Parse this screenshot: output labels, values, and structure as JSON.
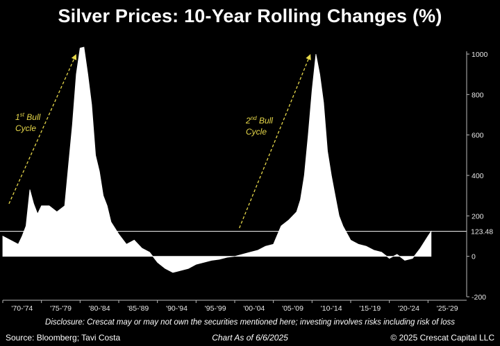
{
  "chart_data": {
    "type": "area",
    "title": "Silver Prices: 10-Year Rolling Changes (%)",
    "ylim": [
      -200,
      1000
    ],
    "yticks": [
      1000,
      800,
      600,
      400,
      200,
      0,
      -200
    ],
    "ytick_labels": [
      "1000",
      "800",
      "600",
      "400",
      "200",
      "0",
      "-200"
    ],
    "x_range": [
      1970,
      2030
    ],
    "xticks": [
      "'70-'74",
      "'75-'79",
      "'80-'84",
      "'85-'89",
      "'90-'94",
      "'95-'99",
      "'00-'04",
      "'05-'09",
      "'10-'14",
      "'15-'19",
      "'20-'24",
      "'25-'29"
    ],
    "reference_line": {
      "value": 123.48,
      "label": "123.48"
    },
    "x": [
      1970,
      1971,
      1972,
      1972.5,
      1973,
      1973.5,
      1974,
      1974.5,
      1975,
      1976,
      1977,
      1978,
      1978.5,
      1979,
      1979.5,
      1980,
      1980.5,
      1981,
      1981.5,
      1982,
      1982.5,
      1983,
      1983.5,
      1984,
      1985,
      1986,
      1987,
      1988,
      1989,
      1990,
      1991,
      1992,
      1993,
      1994,
      1995,
      1996,
      1997,
      1998,
      1999,
      2000,
      2001,
      2002,
      2003,
      2004,
      2005,
      2006,
      2007,
      2008,
      2008.5,
      2009,
      2009.5,
      2010,
      2010.5,
      2011,
      2011.5,
      2012,
      2012.5,
      2013,
      2013.5,
      2014,
      2015,
      2016,
      2017,
      2018,
      2019,
      2020,
      2021,
      2022,
      2023,
      2024,
      2025,
      2025.4
    ],
    "series": [
      {
        "values": [
          100,
          80,
          60,
          100,
          150,
          330,
          260,
          210,
          250,
          250,
          220,
          250,
          450,
          650,
          900,
          1030,
          1050,
          900,
          750,
          500,
          420,
          300,
          250,
          170,
          110,
          60,
          80,
          40,
          20,
          -30,
          -60,
          -80,
          -70,
          -60,
          -40,
          -30,
          -20,
          -15,
          -5,
          0,
          10,
          20,
          30,
          50,
          60,
          150,
          180,
          220,
          280,
          400,
          600,
          820,
          1000,
          900,
          760,
          520,
          400,
          300,
          200,
          150,
          80,
          60,
          50,
          30,
          20,
          -10,
          10,
          -20,
          -10,
          40,
          100,
          123.48
        ]
      }
    ]
  },
  "annotations": {
    "first": {
      "sup": "st",
      "line1": "Bull",
      "line2": "Cycle",
      "num": "1"
    },
    "second": {
      "sup": "nd",
      "line1": "Bull",
      "line2": "Cycle",
      "num": "2"
    }
  },
  "footer": {
    "disclosure": "Disclosure: Crescat may or may not own the securities mentioned here; investing involves risks including risk of loss",
    "source": "Source: Bloomberg; Tavi Costa",
    "as_of": "Chart As of 6/6/2025",
    "copyright": "© 2025 Crescat Capital LLC"
  },
  "colors": {
    "background": "#000000",
    "area": "#ffffff",
    "annotation": "#e7d84a",
    "text": "#ffffff"
  }
}
